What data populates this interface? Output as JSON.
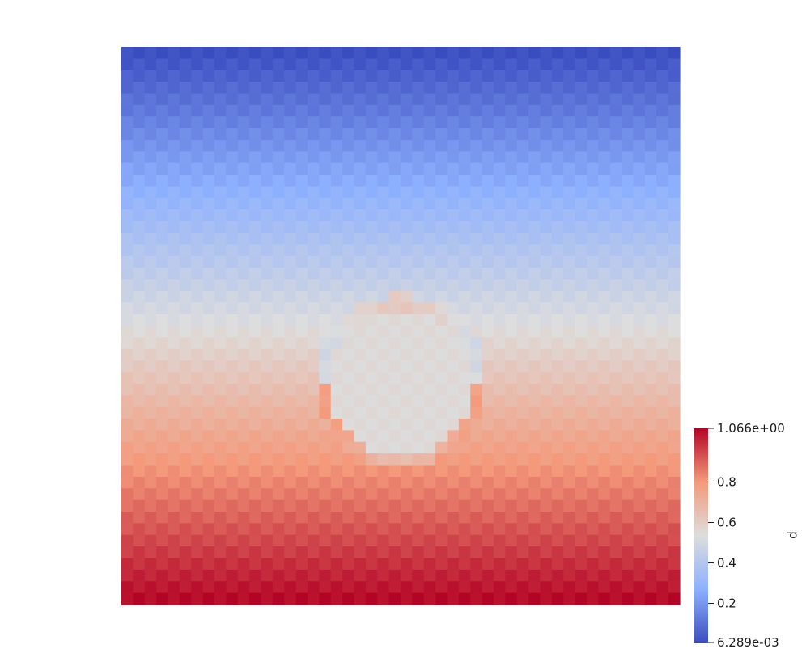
{
  "chart_data": {
    "type": "heatmap",
    "field": "p",
    "colormap": "Cool to Warm",
    "colormap_low": "#3b4cc0",
    "colormap_mid": "#dddddd",
    "colormap_high": "#b40426",
    "grid": {
      "nx": 48,
      "ny": 48
    },
    "range": [
      0.006289,
      1.066
    ],
    "field_description": "pressure increases linearly from top (low) to bottom (high), with a circular inclusion near the center of roughly uniform value ~0.55",
    "inclusion": {
      "center": [
        0.5,
        0.6
      ],
      "radius": 0.13,
      "value": 0.55
    },
    "colorbar": {
      "title": "p",
      "max_label": "1.066e+00",
      "min_label": "6.289e-03",
      "ticks": [
        {
          "value": 0.8,
          "label": "0.8"
        },
        {
          "value": 0.6,
          "label": "0.6"
        },
        {
          "value": 0.4,
          "label": "0.4"
        },
        {
          "value": 0.2,
          "label": "0.2"
        }
      ]
    }
  }
}
